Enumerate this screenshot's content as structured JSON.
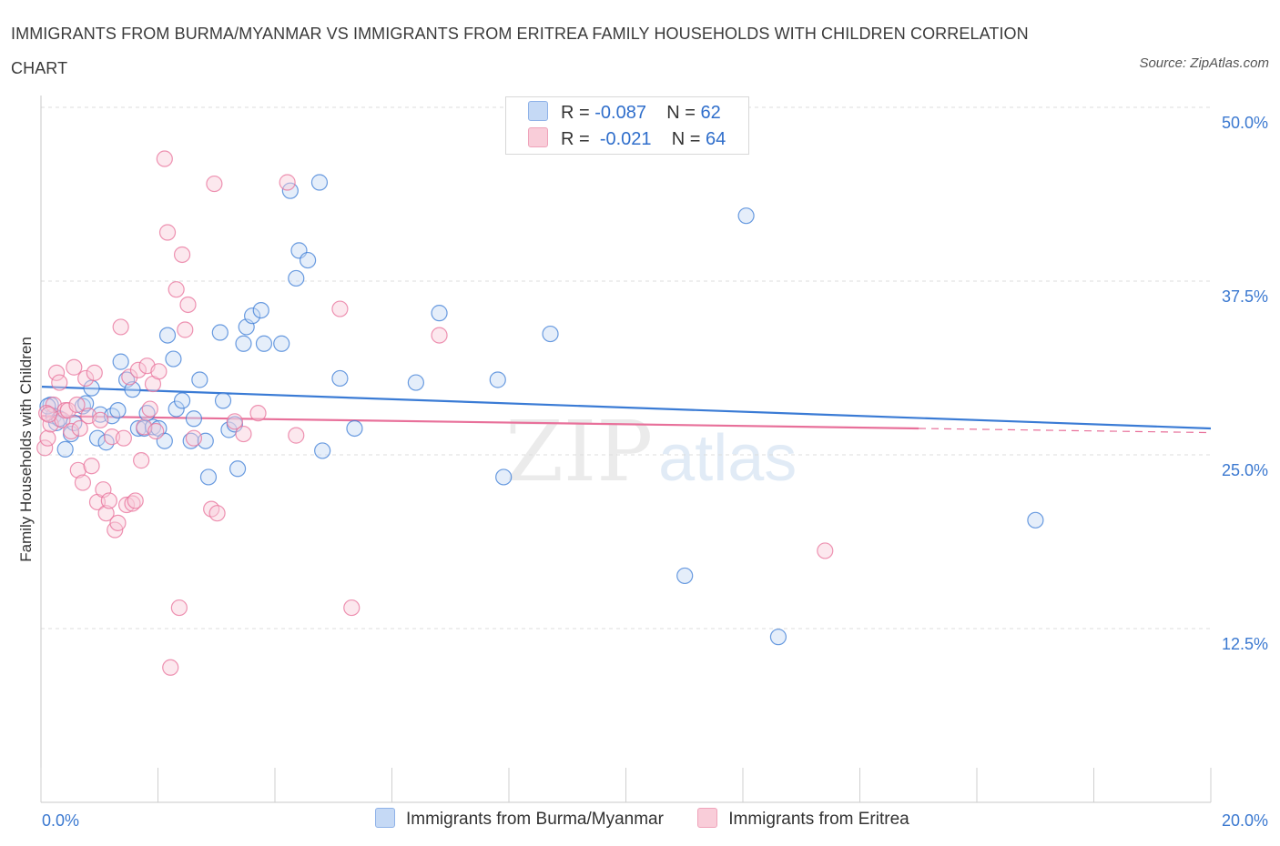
{
  "title": "IMMIGRANTS FROM BURMA/MYANMAR VS IMMIGRANTS FROM ERITREA FAMILY HOUSEHOLDS WITH CHILDREN CORRELATION CHART",
  "source": "Source: ZipAtlas.com",
  "watermark": "ZIPatlas",
  "legend_top": {
    "blue": {
      "r_label": "R =",
      "r_value": "-0.087",
      "n_label": "N =",
      "n_value": "62"
    },
    "pink": {
      "r_label": "R =",
      "r_value": "-0.021",
      "n_label": "N =",
      "n_value": "64"
    }
  },
  "colors": {
    "blue": "#3a7bd5",
    "pink": "#e8709a",
    "blue_fill": "#c5d9f5",
    "pink_fill": "#f9cdd9",
    "axis_label": "#3a78d0"
  },
  "chart_data": {
    "type": "scatter",
    "title": "IMMIGRANTS FROM BURMA/MYANMAR VS IMMIGRANTS FROM ERITREA FAMILY HOUSEHOLDS WITH CHILDREN CORRELATION CHART",
    "xlabel": "",
    "ylabel": "Family Households with Children",
    "xlim": [
      0,
      20
    ],
    "ylim": [
      0,
      50
    ],
    "x_ticks": [
      "0.0%",
      "20.0%"
    ],
    "y_ticks": [
      {
        "value": 12.5,
        "label": "12.5%"
      },
      {
        "value": 25,
        "label": "25.0%"
      },
      {
        "value": 37.5,
        "label": "37.5%"
      },
      {
        "value": 50,
        "label": "50.0%"
      }
    ],
    "series": [
      {
        "name": "Immigrants from Burma/Myanmar",
        "color": "#3a7bd5",
        "trend": {
          "x": [
            0,
            20
          ],
          "y": [
            29.9,
            26.9
          ]
        },
        "points": [
          [
            0.15,
            28.6
          ],
          [
            0.2,
            27.8
          ],
          [
            0.25,
            27.3
          ],
          [
            0.3,
            27.6
          ],
          [
            0.4,
            25.4
          ],
          [
            0.5,
            26.5
          ],
          [
            0.55,
            27.3
          ],
          [
            0.7,
            28.5
          ],
          [
            0.75,
            28.7
          ],
          [
            0.85,
            29.8
          ],
          [
            0.95,
            26.2
          ],
          [
            1.0,
            27.9
          ],
          [
            1.1,
            25.9
          ],
          [
            1.2,
            27.8
          ],
          [
            1.3,
            28.2
          ],
          [
            1.35,
            31.7
          ],
          [
            1.45,
            30.4
          ],
          [
            1.55,
            29.7
          ],
          [
            1.65,
            26.9
          ],
          [
            1.75,
            26.9
          ],
          [
            1.8,
            28.0
          ],
          [
            1.9,
            27.0
          ],
          [
            2.0,
            26.9
          ],
          [
            2.1,
            26.0
          ],
          [
            2.15,
            33.6
          ],
          [
            2.25,
            31.9
          ],
          [
            2.3,
            28.3
          ],
          [
            2.4,
            28.9
          ],
          [
            2.55,
            26.0
          ],
          [
            2.6,
            27.6
          ],
          [
            2.7,
            30.4
          ],
          [
            2.8,
            26.0
          ],
          [
            2.85,
            23.4
          ],
          [
            3.05,
            33.8
          ],
          [
            3.1,
            28.9
          ],
          [
            3.2,
            26.8
          ],
          [
            3.3,
            27.2
          ],
          [
            3.35,
            24.0
          ],
          [
            3.45,
            33.0
          ],
          [
            3.5,
            34.2
          ],
          [
            3.6,
            35.0
          ],
          [
            3.75,
            35.4
          ],
          [
            3.8,
            33.0
          ],
          [
            4.1,
            33.0
          ],
          [
            4.25,
            44.0
          ],
          [
            4.35,
            37.7
          ],
          [
            4.4,
            39.7
          ],
          [
            4.55,
            39.0
          ],
          [
            4.75,
            44.6
          ],
          [
            4.8,
            25.3
          ],
          [
            5.1,
            30.5
          ],
          [
            5.35,
            26.9
          ],
          [
            6.4,
            30.2
          ],
          [
            6.8,
            35.2
          ],
          [
            7.8,
            30.4
          ],
          [
            7.9,
            23.4
          ],
          [
            8.7,
            33.7
          ],
          [
            11.0,
            16.3
          ],
          [
            12.05,
            42.2
          ],
          [
            12.6,
            11.9
          ],
          [
            17.0,
            20.3
          ],
          [
            0.1,
            28.5
          ]
        ]
      },
      {
        "name": "Immigrants from Eritrea",
        "color": "#e8709a",
        "trend": {
          "x": [
            0,
            15
          ],
          "y": [
            27.8,
            26.9
          ]
        },
        "trend_dashed": {
          "x": [
            15,
            20
          ],
          "y": [
            26.9,
            26.6
          ]
        },
        "points": [
          [
            0.05,
            25.5
          ],
          [
            0.1,
            26.2
          ],
          [
            0.15,
            27.2
          ],
          [
            0.2,
            28.6
          ],
          [
            0.25,
            30.9
          ],
          [
            0.3,
            30.2
          ],
          [
            0.35,
            27.5
          ],
          [
            0.4,
            28.2
          ],
          [
            0.45,
            28.2
          ],
          [
            0.5,
            26.7
          ],
          [
            0.55,
            31.3
          ],
          [
            0.6,
            28.6
          ],
          [
            0.62,
            23.9
          ],
          [
            0.65,
            26.9
          ],
          [
            0.7,
            23.0
          ],
          [
            0.75,
            30.5
          ],
          [
            0.8,
            27.8
          ],
          [
            0.85,
            24.2
          ],
          [
            0.9,
            30.9
          ],
          [
            0.95,
            21.6
          ],
          [
            1.0,
            27.5
          ],
          [
            1.05,
            22.5
          ],
          [
            1.1,
            20.8
          ],
          [
            1.15,
            21.7
          ],
          [
            1.2,
            26.3
          ],
          [
            1.25,
            19.6
          ],
          [
            1.3,
            20.1
          ],
          [
            1.35,
            34.2
          ],
          [
            1.4,
            26.2
          ],
          [
            1.45,
            21.4
          ],
          [
            1.5,
            30.6
          ],
          [
            1.55,
            21.5
          ],
          [
            1.6,
            21.7
          ],
          [
            1.65,
            31.1
          ],
          [
            1.7,
            24.6
          ],
          [
            1.75,
            27.0
          ],
          [
            1.8,
            31.4
          ],
          [
            1.85,
            28.3
          ],
          [
            1.9,
            30.1
          ],
          [
            1.95,
            26.7
          ],
          [
            2.0,
            31.0
          ],
          [
            2.1,
            46.3
          ],
          [
            2.15,
            41.0
          ],
          [
            2.2,
            9.7
          ],
          [
            2.3,
            36.9
          ],
          [
            2.35,
            14.0
          ],
          [
            2.4,
            39.4
          ],
          [
            2.45,
            34.0
          ],
          [
            2.5,
            35.8
          ],
          [
            2.6,
            26.2
          ],
          [
            2.9,
            21.1
          ],
          [
            2.95,
            44.5
          ],
          [
            3.0,
            20.8
          ],
          [
            3.3,
            27.4
          ],
          [
            3.45,
            26.5
          ],
          [
            3.7,
            28.0
          ],
          [
            4.2,
            44.6
          ],
          [
            4.35,
            26.4
          ],
          [
            5.1,
            35.5
          ],
          [
            5.3,
            14.0
          ],
          [
            6.8,
            33.6
          ],
          [
            13.4,
            18.1
          ],
          [
            0.08,
            28.0
          ],
          [
            0.12,
            27.9
          ]
        ]
      }
    ]
  }
}
